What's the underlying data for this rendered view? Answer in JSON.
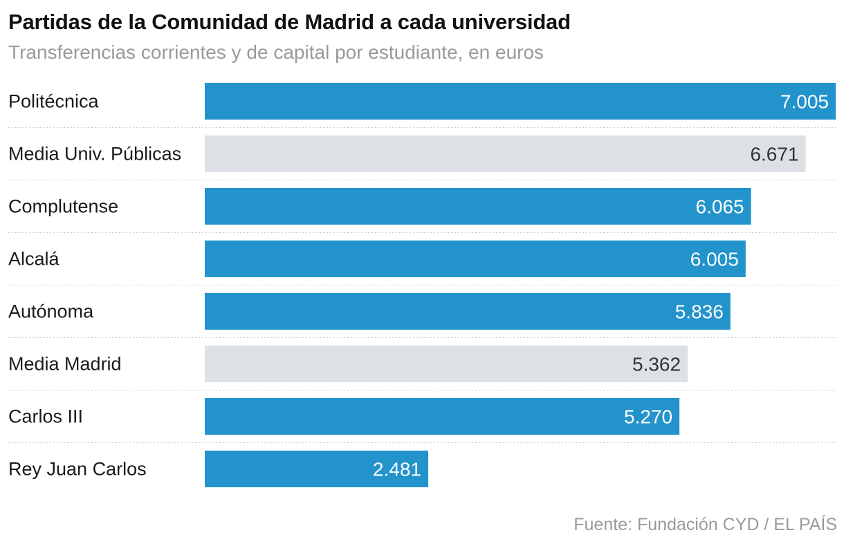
{
  "chart_data": {
    "type": "bar",
    "orientation": "horizontal",
    "title": "Partidas de la Comunidad de Madrid a cada universidad",
    "subtitle": "Transferencias corrientes y de capital por estudiante, en euros",
    "source": "Fuente: Fundación CYD / EL PAÍS",
    "categories": [
      "Politécnica",
      "Media Univ. Públicas",
      "Complutense",
      "Alcalá",
      "Autónoma",
      "Media Madrid",
      "Carlos III",
      "Rey Juan Carlos"
    ],
    "values": [
      7005,
      6671,
      6065,
      6005,
      5836,
      5362,
      5270,
      2481
    ],
    "value_labels": [
      "7.005",
      "6.671",
      "6.065",
      "6.005",
      "5.836",
      "5.362",
      "5.270",
      "2.481"
    ],
    "highlight": [
      true,
      false,
      true,
      true,
      true,
      false,
      true,
      true
    ],
    "xlim": [
      0,
      7005
    ],
    "grid": false,
    "colors": {
      "primary": "#2393cc",
      "average": "#dde1e5",
      "label_on_primary": "#ffffff",
      "label_on_average": "#333333",
      "separator": "#cccccc"
    }
  }
}
